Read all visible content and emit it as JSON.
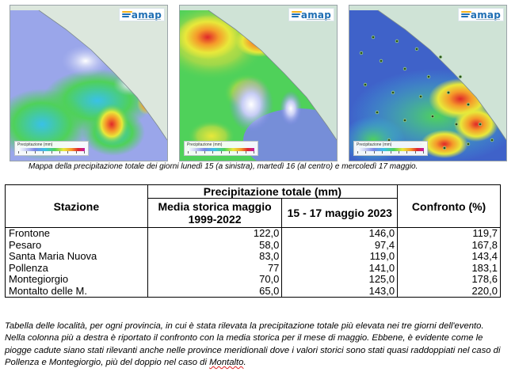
{
  "maps": [
    {
      "id": "map-left",
      "logo_text": "amap",
      "legend_label": "Precipitazione (mm)"
    },
    {
      "id": "map-center",
      "logo_text": "amap",
      "legend_label": "Precipitazione (mm)"
    },
    {
      "id": "map-right",
      "logo_text": "amap",
      "legend_label": "Precipitazione (mm)"
    }
  ],
  "caption": "Mappa della precipitazione totale dei giorni lunedì 15 (a sinistra), martedì 16 (al centro) e mercoledì 17 maggio.",
  "table": {
    "col_station": "Stazione",
    "group_header": "Precipitazione totale (mm)",
    "col_historic": "Media storica maggio 1999-2022",
    "col_event": "15 - 17 maggio 2023",
    "col_compare": "Confronto (%)",
    "rows": [
      {
        "station": "Frontone",
        "historic": "122,0",
        "event": "146,0",
        "compare": "119,7"
      },
      {
        "station": "Pesaro",
        "historic": "58,0",
        "event": "97,4",
        "compare": "167,8"
      },
      {
        "station": "Santa Maria Nuova",
        "historic": "83,0",
        "event": "119,0",
        "compare": "143,4"
      },
      {
        "station": "Pollenza",
        "historic": "77",
        "event": "141,0",
        "compare": "183,1"
      },
      {
        "station": "Montegiorgio",
        "historic": "70,0",
        "event": "125,0",
        "compare": "178,6"
      },
      {
        "station": "Montalto delle M.",
        "historic": "65,0",
        "event": "143,0",
        "compare": "220,0"
      }
    ]
  },
  "note": {
    "text": "Tabella delle località, per ogni provincia, in cui è stata rilevata la precipitazione totale più elevata nei tre giorni dell'evento. Nella colonna più a destra è riportato il confronto con la media storica per il mese di maggio. Ebbene, è evidente come le piogge cadute siano stati rilevanti anche nelle province meridionali dove i valori storici sono stati quasi raddoppiati nel caso di Pollenza e Montegiorgio, più del doppio nel caso di ",
    "underlined": "Montalto",
    "end": "."
  }
}
